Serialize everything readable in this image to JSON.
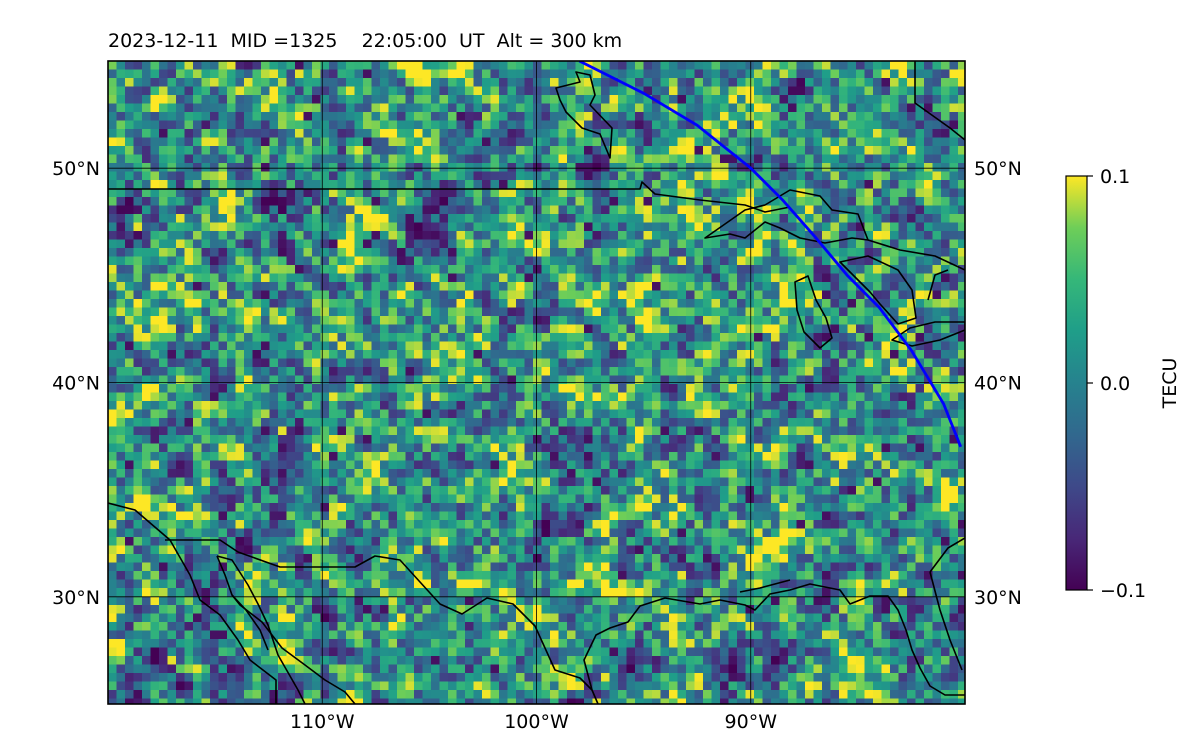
{
  "title": "2023-12-11  MID =1325    22:05:00  UT  Alt = 300 km",
  "chart_data": {
    "type": "heatmap",
    "lon_range": [
      -120,
      -80
    ],
    "lat_range": [
      25,
      55
    ],
    "x_ticks": [
      {
        "value": -110,
        "label": "110°W"
      },
      {
        "value": -100,
        "label": "100°W"
      },
      {
        "value": -90,
        "label": "90°W"
      }
    ],
    "y_ticks": [
      {
        "value": 30,
        "label": "30°N"
      },
      {
        "value": 40,
        "label": "40°N"
      },
      {
        "value": 50,
        "label": "50°N"
      }
    ],
    "grid": true,
    "colormap": "viridis",
    "colorbar": {
      "label": "TECU",
      "min": -0.1,
      "max": 0.1,
      "ticks": [
        {
          "value": 0.1,
          "label": "0.1"
        },
        {
          "value": 0.0,
          "label": "0.0"
        },
        {
          "value": -0.1,
          "label": "−0.1"
        }
      ]
    },
    "terminator_color": "#0000ff",
    "terminator_line": [
      [
        -98,
        55
      ],
      [
        -95,
        53.5
      ],
      [
        -92.5,
        52
      ],
      [
        -90,
        50
      ],
      [
        -88.5,
        48.5
      ],
      [
        -87,
        46.8
      ],
      [
        -85.5,
        45
      ],
      [
        -84,
        43.5
      ],
      [
        -82.5,
        41.5
      ],
      [
        -81,
        39
      ],
      [
        -80.2,
        37
      ]
    ]
  }
}
